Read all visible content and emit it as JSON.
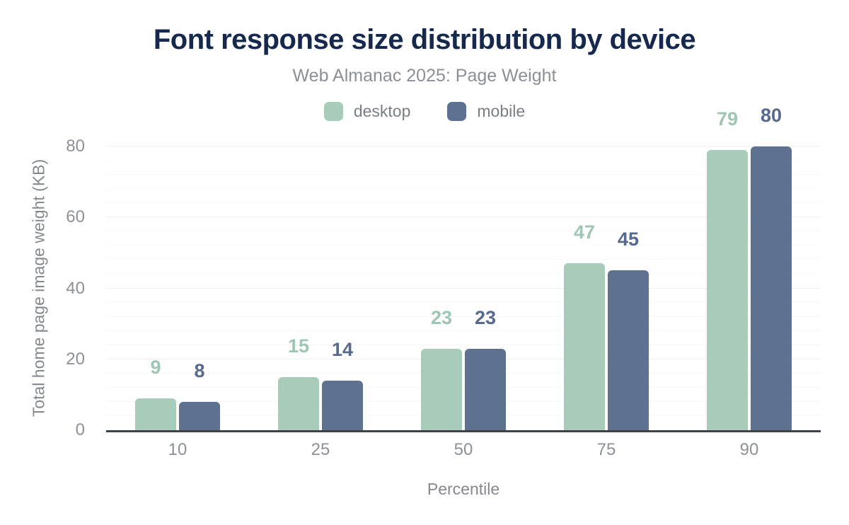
{
  "title": "Font response size distribution by device",
  "subtitle": "Web Almanac 2025: Page Weight",
  "legend": {
    "items": [
      {
        "label": "desktop",
        "color": "#a8ccba"
      },
      {
        "label": "mobile",
        "color": "#5f7190"
      }
    ]
  },
  "colors": {
    "title": "#16294d",
    "axis_line": "#3d4249",
    "tick_text": "#8c9198",
    "desktop": "#a8ccba",
    "mobile": "#5f7190"
  },
  "chart_data": {
    "type": "bar",
    "title": "Font response size distribution by device",
    "subtitle": "Web Almanac 2025: Page Weight",
    "categories": [
      "10",
      "25",
      "50",
      "75",
      "90"
    ],
    "series": [
      {
        "name": "desktop",
        "color": "#a8ccba",
        "label_color": "#9ec6b2",
        "values": [
          9,
          15,
          23,
          47,
          79
        ]
      },
      {
        "name": "mobile",
        "color": "#5f7190",
        "label_color": "#57698c",
        "values": [
          8,
          14,
          23,
          45,
          80
        ]
      }
    ],
    "xlabel": "Percentile",
    "ylabel": "Total home page image weight (KB)",
    "ylim": [
      0,
      80
    ],
    "yticks": [
      0,
      20,
      40,
      60,
      80
    ],
    "minor_grid_step": 4,
    "grid": true,
    "legend_position": "top",
    "data_labels": true
  }
}
